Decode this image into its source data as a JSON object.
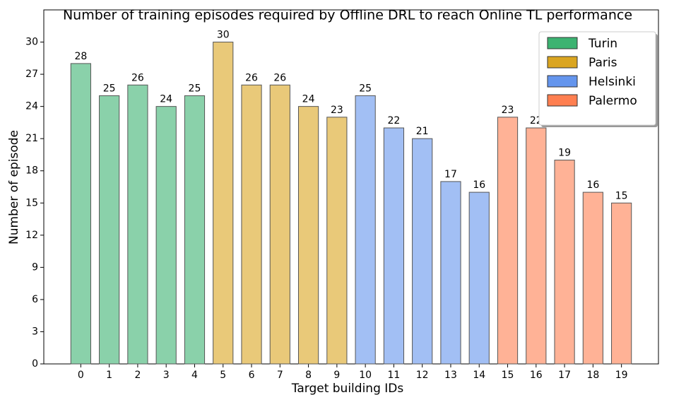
{
  "chart_data": {
    "type": "bar",
    "title": "Number of training episodes required by Offline DRL to reach Online TL performance",
    "x_label": "Target building IDs",
    "y_label": "Number of episode",
    "categories": [
      "0",
      "1",
      "2",
      "3",
      "4",
      "5",
      "6",
      "7",
      "8",
      "9",
      "10",
      "11",
      "12",
      "13",
      "14",
      "15",
      "16",
      "17",
      "18",
      "19"
    ],
    "series": [
      {
        "name": "Turin",
        "color": "#3cb371",
        "values": [
          28,
          25,
          26,
          24,
          25,
          null,
          null,
          null,
          null,
          null,
          null,
          null,
          null,
          null,
          null,
          null,
          null,
          null,
          null,
          null
        ]
      },
      {
        "name": "Paris",
        "color": "#daa520",
        "values": [
          null,
          null,
          null,
          null,
          null,
          30,
          26,
          26,
          24,
          23,
          null,
          null,
          null,
          null,
          null,
          null,
          null,
          null,
          null,
          null
        ]
      },
      {
        "name": "Helsinki",
        "color": "#6495ed",
        "values": [
          null,
          null,
          null,
          null,
          null,
          null,
          null,
          null,
          null,
          null,
          25,
          22,
          21,
          17,
          16,
          null,
          null,
          null,
          null,
          null
        ]
      },
      {
        "name": "Palermo",
        "color": "#ff7f50",
        "values": [
          null,
          null,
          null,
          null,
          null,
          null,
          null,
          null,
          null,
          null,
          null,
          null,
          null,
          null,
          null,
          23,
          22,
          19,
          16,
          15
        ]
      }
    ],
    "ylim": [
      0,
      33
    ],
    "yticks": [
      0,
      3,
      6,
      9,
      12,
      15,
      18,
      21,
      24,
      27,
      30
    ],
    "grid": false,
    "legend": "upper right"
  }
}
